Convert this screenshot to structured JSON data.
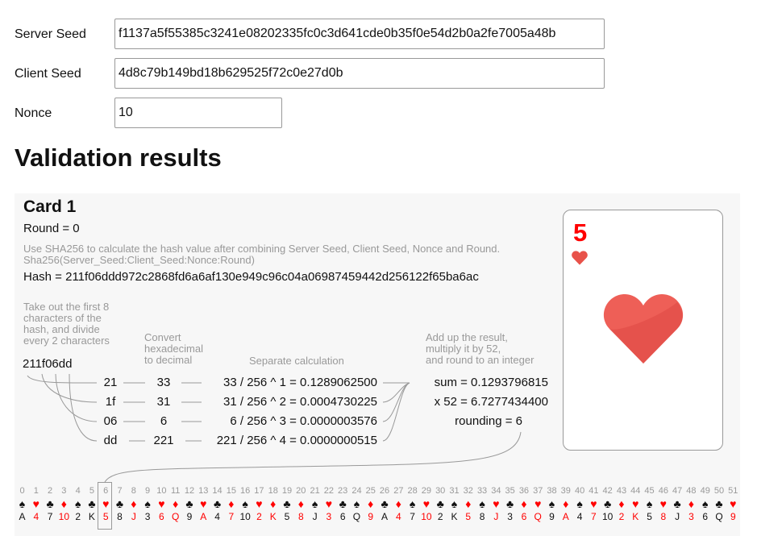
{
  "form": {
    "server_seed_label": "Server Seed",
    "server_seed_value": "f1137a5f55385c3241e08202335fc0c3d641cde0b35f0e54d2b0a2fe7005a48b",
    "client_seed_label": "Client Seed",
    "client_seed_value": "4d8c79b149bd18b629525f72c0e27d0b",
    "nonce_label": "Nonce",
    "nonce_value": "10"
  },
  "results": {
    "title": "Validation results",
    "card_title": "Card 1",
    "round": "Round = 0",
    "sha_note_1": "Use SHA256 to calculate the hash value after combining Server Seed, Client Seed, Nonce and Round.",
    "sha_note_2": "Sha256(Server_Seed:Client_Seed:Nonce:Round)",
    "hash": "Hash = 211f06ddd972c2868fd6a6af130e949c96c04a06987459442d256122f65ba6ac",
    "step1_note": [
      "Take out the first 8",
      "characters of the",
      "hash, and divide",
      "every 2 characters"
    ],
    "step2_note": [
      "Convert",
      "hexadecimal",
      "to decimal"
    ],
    "step3_note": "Separate calculation",
    "step4_note": [
      "Add up the result,",
      "multiply it by 52,",
      "and round to an integer"
    ],
    "first8": "211f06dd",
    "rows": [
      {
        "hex": "21",
        "dec": "33",
        "calc": "33 / 256 ^ 1 = 0.1289062500"
      },
      {
        "hex": "1f",
        "dec": "31",
        "calc": "31 / 256 ^ 2 = 0.0004730225"
      },
      {
        "hex": "06",
        "dec": "6",
        "calc": "6 / 256 ^ 3 = 0.0000003576"
      },
      {
        "hex": "dd",
        "dec": "221",
        "calc": "221 / 256 ^ 4 = 0.0000000515"
      }
    ],
    "sum": "sum = 0.1293796815",
    "times52": "x 52 = 6.7277434400",
    "rounding": "rounding = 6",
    "result_card": {
      "rank": "5",
      "suit": "hearts",
      "color": "#ff0000"
    },
    "selected_index": 6
  },
  "colors": {
    "red": "#ff0000",
    "black": "#111111",
    "heart_big": "#e8524a",
    "panel": "#f7f7f7"
  },
  "deck": [
    [
      "♠",
      "A"
    ],
    [
      "♥",
      "4"
    ],
    [
      "♣",
      "7"
    ],
    [
      "♦",
      "10"
    ],
    [
      "♠",
      "2"
    ],
    [
      "♣",
      "K"
    ],
    [
      "♥",
      "5"
    ],
    [
      "♣",
      "8"
    ],
    [
      "♦",
      "J"
    ],
    [
      "♠",
      "3"
    ],
    [
      "♥",
      "6"
    ],
    [
      "♦",
      "Q"
    ],
    [
      "♣",
      "9"
    ],
    [
      "♥",
      "A"
    ],
    [
      "♣",
      "4"
    ],
    [
      "♦",
      "7"
    ],
    [
      "♠",
      "10"
    ],
    [
      "♥",
      "2"
    ],
    [
      "♦",
      "K"
    ],
    [
      "♣",
      "5"
    ],
    [
      "♦",
      "8"
    ],
    [
      "♠",
      "J"
    ],
    [
      "♥",
      "3"
    ],
    [
      "♣",
      "6"
    ],
    [
      "♠",
      "Q"
    ],
    [
      "♦",
      "9"
    ],
    [
      "♣",
      "A"
    ],
    [
      "♦",
      "4"
    ],
    [
      "♠",
      "7"
    ],
    [
      "♥",
      "10"
    ],
    [
      "♣",
      "2"
    ],
    [
      "♠",
      "K"
    ],
    [
      "♦",
      "5"
    ],
    [
      "♠",
      "8"
    ],
    [
      "♥",
      "J"
    ],
    [
      "♣",
      "3"
    ],
    [
      "♦",
      "6"
    ],
    [
      "♥",
      "Q"
    ],
    [
      "♠",
      "9"
    ],
    [
      "♦",
      "A"
    ],
    [
      "♠",
      "4"
    ],
    [
      "♥",
      "7"
    ],
    [
      "♣",
      "10"
    ],
    [
      "♦",
      "2"
    ],
    [
      "♥",
      "K"
    ],
    [
      "♠",
      "5"
    ],
    [
      "♥",
      "8"
    ],
    [
      "♣",
      "J"
    ],
    [
      "♦",
      "3"
    ],
    [
      "♠",
      "6"
    ],
    [
      "♣",
      "Q"
    ],
    [
      "♥",
      "9"
    ]
  ]
}
